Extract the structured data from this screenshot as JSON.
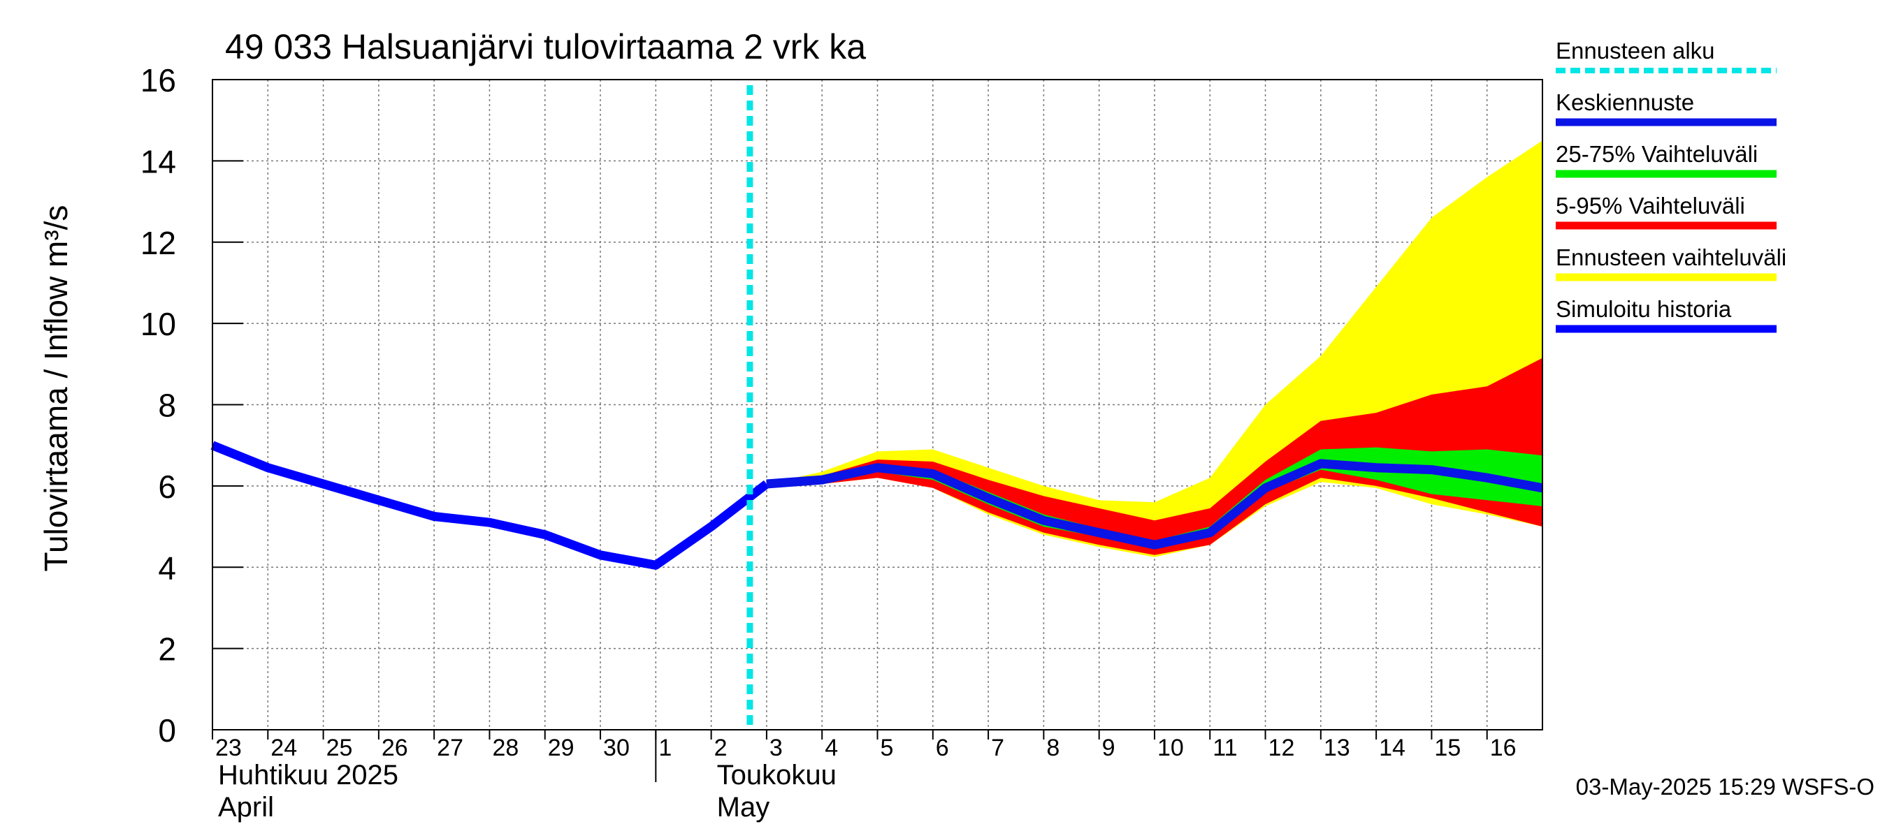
{
  "chart_data": {
    "type": "area",
    "title": "49 033 Halsuanjärvi tulovirtaama 2 vrk ka",
    "ylabel": "Tulovirtaama / Inflow    m³/s",
    "ylim": [
      0,
      16
    ],
    "y_ticks": [
      0,
      2,
      4,
      6,
      8,
      10,
      12,
      14,
      16
    ],
    "x_start": "2025-04-23",
    "x_end": "2025-05-17",
    "x_tick_dates": [
      "2025-04-23",
      "2025-04-24",
      "2025-04-25",
      "2025-04-26",
      "2025-04-27",
      "2025-04-28",
      "2025-04-29",
      "2025-04-30",
      "2025-05-01",
      "2025-05-02",
      "2025-05-03",
      "2025-05-04",
      "2025-05-05",
      "2025-05-06",
      "2025-05-07",
      "2025-05-08",
      "2025-05-09",
      "2025-05-10",
      "2025-05-11",
      "2025-05-12",
      "2025-05-13",
      "2025-05-14",
      "2025-05-15",
      "2025-05-16"
    ],
    "x_tick_labels": [
      "23",
      "24",
      "25",
      "26",
      "27",
      "28",
      "29",
      "30",
      "1",
      "2",
      "3",
      "4",
      "5",
      "6",
      "7",
      "8",
      "9",
      "10",
      "11",
      "12",
      "13",
      "14",
      "15",
      "16"
    ],
    "month_labels": [
      {
        "date": "2025-04-23",
        "line1": "Huhtikuu  2025",
        "line2": "April"
      },
      {
        "date": "2025-05-02",
        "line1": "Toukokuu",
        "line2": "May"
      }
    ],
    "month_divider_date": "2025-05-01",
    "forecast_start": "2025-05-03",
    "grid": true,
    "legend_position": "right",
    "timestamp": "03-May-2025 15:29 WSFS-O",
    "x": [
      "2025-04-23",
      "2025-04-24",
      "2025-04-25",
      "2025-04-26",
      "2025-04-27",
      "2025-04-28",
      "2025-04-29",
      "2025-04-30",
      "2025-05-01",
      "2025-05-02",
      "2025-05-03",
      "2025-05-04",
      "2025-05-05",
      "2025-05-06",
      "2025-05-07",
      "2025-05-08",
      "2025-05-09",
      "2025-05-10",
      "2025-05-11",
      "2025-05-12",
      "2025-05-13",
      "2025-05-14",
      "2025-05-15",
      "2025-05-16",
      "2025-05-17"
    ],
    "series": [
      {
        "name": "Ennusteen vaihteluväli",
        "kind": "band",
        "color": "#ffff00",
        "lower": [
          null,
          null,
          null,
          null,
          null,
          null,
          null,
          null,
          null,
          null,
          6.05,
          6.05,
          6.2,
          5.95,
          5.3,
          4.8,
          4.5,
          4.25,
          4.55,
          5.5,
          6.1,
          5.95,
          5.55,
          5.3,
          5.0
        ],
        "upper": [
          null,
          null,
          null,
          null,
          null,
          null,
          null,
          null,
          null,
          null,
          6.05,
          6.35,
          6.85,
          6.9,
          6.45,
          6.0,
          5.65,
          5.6,
          6.2,
          8.0,
          9.2,
          10.9,
          12.6,
          13.6,
          14.5
        ]
      },
      {
        "name": "5-95% Vaihteluväli",
        "kind": "band",
        "color": "#ff0000",
        "lower": [
          null,
          null,
          null,
          null,
          null,
          null,
          null,
          null,
          null,
          null,
          6.05,
          6.05,
          6.2,
          5.95,
          5.35,
          4.85,
          4.55,
          4.3,
          4.55,
          5.55,
          6.2,
          6.0,
          5.7,
          5.35,
          5.0
        ],
        "upper": [
          null,
          null,
          null,
          null,
          null,
          null,
          null,
          null,
          null,
          null,
          6.05,
          6.25,
          6.65,
          6.6,
          6.15,
          5.75,
          5.45,
          5.15,
          5.45,
          6.6,
          7.6,
          7.8,
          8.25,
          8.45,
          9.15
        ]
      },
      {
        "name": "25-75% Vaihteluväli",
        "kind": "band",
        "color": "#00ee00",
        "lower": [
          null,
          null,
          null,
          null,
          null,
          null,
          null,
          null,
          null,
          null,
          6.05,
          6.1,
          6.35,
          6.15,
          5.55,
          5.0,
          4.75,
          4.45,
          4.75,
          5.85,
          6.4,
          6.15,
          5.8,
          5.65,
          5.5
        ],
        "upper": [
          null,
          null,
          null,
          null,
          null,
          null,
          null,
          null,
          null,
          null,
          6.05,
          6.2,
          6.55,
          6.4,
          5.85,
          5.3,
          4.95,
          4.65,
          5.0,
          6.15,
          6.9,
          6.95,
          6.85,
          6.9,
          6.75
        ]
      },
      {
        "name": "Simuloitu historia",
        "kind": "line",
        "color": "#0000ff",
        "values": [
          7.0,
          6.45,
          6.05,
          5.65,
          5.25,
          5.1,
          4.8,
          4.3,
          4.05,
          5.0,
          6.05,
          null,
          null,
          null,
          null,
          null,
          null,
          null,
          null,
          null,
          null,
          null,
          null,
          null,
          null
        ]
      },
      {
        "name": "Keskiennuste",
        "kind": "line",
        "color": "#0a14e6",
        "values": [
          null,
          null,
          null,
          null,
          null,
          null,
          null,
          null,
          null,
          null,
          6.05,
          6.15,
          6.45,
          6.3,
          5.7,
          5.15,
          4.85,
          4.55,
          4.85,
          5.95,
          6.55,
          6.45,
          6.4,
          6.2,
          5.95
        ]
      }
    ],
    "legend": [
      {
        "label": "Ennusteen alku",
        "color": "#00e5e5",
        "style": "dotted"
      },
      {
        "label": "Keskiennuste",
        "color": "#0a14e6",
        "style": "solid"
      },
      {
        "label": "25-75% Vaihteluväli",
        "color": "#00ee00",
        "style": "solid"
      },
      {
        "label": "5-95% Vaihteluväli",
        "color": "#ff0000",
        "style": "solid"
      },
      {
        "label": "Ennusteen vaihteluväli",
        "color": "#ffff00",
        "style": "solid"
      },
      {
        "label": "Simuloitu historia",
        "color": "#0000ff",
        "style": "solid"
      }
    ]
  }
}
